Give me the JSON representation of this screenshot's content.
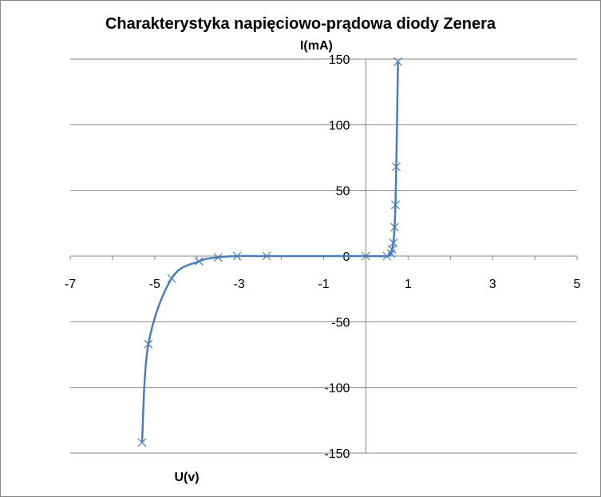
{
  "chart_data": {
    "type": "scatter",
    "title": "Charakterystyka napięciowo-prądowa diody Zenera",
    "xlabel": "U(v)",
    "ylabel": "I(mA)",
    "xlim": [
      -7,
      5
    ],
    "ylim": [
      -150,
      150
    ],
    "x_ticks": [
      -7,
      -5,
      -3,
      -1,
      1,
      3,
      5
    ],
    "y_ticks": [
      -150,
      -100,
      -50,
      0,
      50,
      100,
      150
    ],
    "grid": "horizontal",
    "line_color": "#4a7ebb",
    "marker": "x",
    "smooth": true,
    "series": [
      {
        "x": [
          -5.3,
          -5.15,
          -4.6,
          -3.95,
          -3.5,
          -3.05,
          -2.35,
          0,
          0.5,
          0.6,
          0.62,
          0.65,
          0.68,
          0.7,
          0.72,
          0.76
        ],
        "y": [
          -142,
          -67,
          -17,
          -4,
          -1,
          0,
          0,
          0,
          0,
          2,
          5,
          10,
          22,
          39,
          68,
          148
        ]
      }
    ]
  }
}
